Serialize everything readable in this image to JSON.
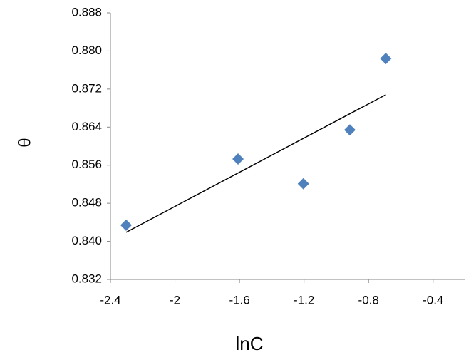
{
  "chart_data": {
    "type": "scatter",
    "x_label": "lnC",
    "y_label": "θ",
    "series": [
      {
        "color": "#4f81bd",
        "marker": "diamond",
        "x": [
          -2.303,
          -1.609,
          -1.204,
          -0.916,
          -0.693
        ],
        "values": [
          0.8434,
          0.8573,
          0.8521,
          0.8634,
          0.8784
        ]
      }
    ],
    "trendline": {
      "color": "#000000",
      "x": [
        -2.303,
        -0.693
      ],
      "y": [
        0.8419,
        0.8708
      ]
    },
    "xlim": [
      -2.4,
      -0.2
    ],
    "xticks": [
      -2.4,
      -2,
      -1.6,
      -1.2,
      -0.8,
      -0.4
    ],
    "ylim": [
      0.832,
      0.888
    ],
    "yticks": [
      0.832,
      {
        "value": 0.84,
        "label": "0.840"
      },
      0.848,
      0.856,
      0.864,
      0.872,
      {
        "value": 0.88,
        "label": "0.880"
      },
      0.888
    ],
    "grid": false
  }
}
